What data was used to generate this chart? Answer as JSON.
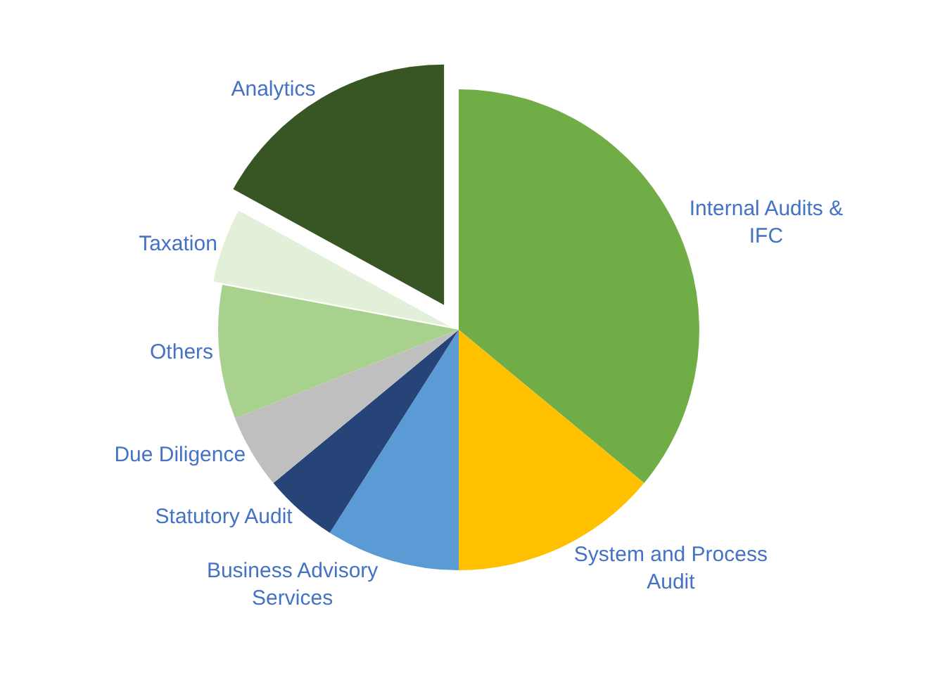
{
  "chart_data": {
    "type": "pie",
    "categories": [
      "Internal Audits & IFC",
      "System and Process Audit",
      "Business Advisory Services",
      "Statutory Audit",
      "Due Diligence",
      "Others",
      "Taxation",
      "Analytics"
    ],
    "values": [
      36,
      14,
      9,
      5,
      5,
      9,
      5,
      17
    ],
    "colors": [
      "#70ad47",
      "#ffc000",
      "#5b9bd5",
      "#264478",
      "#bfbfbf",
      "#a9d18e",
      "#e2efd9",
      "#375623"
    ],
    "legend": false
  }
}
